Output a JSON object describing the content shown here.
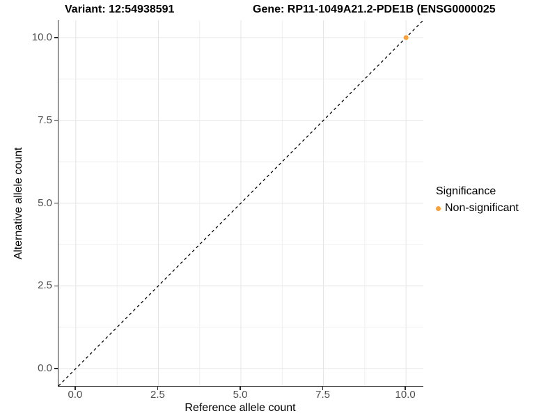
{
  "titles": {
    "variant": "Variant: 12:54938591",
    "gene": "Gene: RP11-1049A21.2-PDE1B (ENSG0000025"
  },
  "legend": {
    "title": "Significance",
    "items": [
      {
        "label": "Non-significant",
        "color": "#F9A23B",
        "marker": "circle-icon"
      }
    ],
    "position": "right"
  },
  "colors": {
    "point_orange": "#F9A23B",
    "axis_line": "#2b2b2b",
    "tick_text": "#4d4d4d",
    "grid_major": "#e4e4e4",
    "grid_minor": "#efefef",
    "identity_line": "#000000"
  },
  "chart_data": {
    "type": "scatter",
    "title_left": "Variant: 12:54938591",
    "title_right": "Gene: RP11-1049A21.2-PDE1B (ENSG0000025",
    "xlabel": "Reference allele count",
    "ylabel": "Alternative allele count",
    "xlim": [
      -0.525,
      10.525
    ],
    "ylim": [
      -0.525,
      10.525
    ],
    "xticks": [
      0,
      2.5,
      5,
      7.5,
      10
    ],
    "yticks": [
      0,
      2.5,
      5,
      7.5,
      10
    ],
    "xtick_labels": [
      "0.0",
      "2.5",
      "5.0",
      "7.5",
      "10.0"
    ],
    "ytick_labels": [
      "0.0",
      "2.5",
      "5.0",
      "7.5",
      "10.0"
    ],
    "minor_ticks": [
      1.25,
      3.75,
      6.25,
      8.75
    ],
    "grid": true,
    "legend_position": "right",
    "series": [
      {
        "name": "Non-significant",
        "color": "#F9A23B",
        "marker": "circle",
        "point_radius": 3.5,
        "points": [
          {
            "x": 10,
            "y": 10
          }
        ]
      }
    ],
    "reference_line": {
      "type": "identity",
      "equation": "y = x",
      "style": "dashed",
      "color": "#000000",
      "from": {
        "x": -0.525,
        "y": -0.525
      },
      "to": {
        "x": 10.525,
        "y": 10.525
      }
    }
  }
}
